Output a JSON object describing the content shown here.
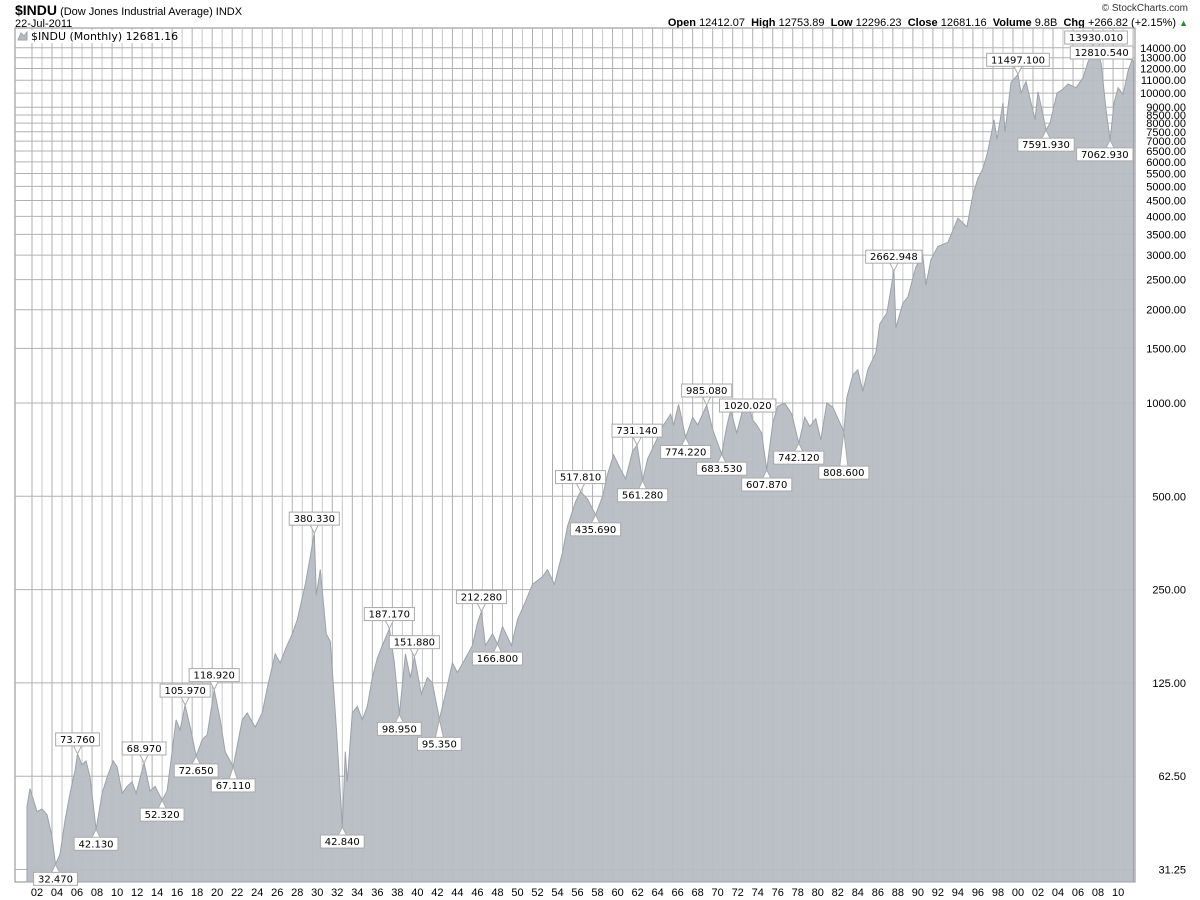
{
  "header": {
    "symbol": "$INDU",
    "name": "(Dow Jones Industrial Average) INDX",
    "date": "22-Jul-2011",
    "copyright": "© StockCharts.com",
    "open_label": "Open",
    "open": "12412.07",
    "high_label": "High",
    "high": "12753.89",
    "low_label": "Low",
    "low": "12296.23",
    "close_label": "Close",
    "close": "12681.16",
    "volume_label": "Volume",
    "volume": "9.8B",
    "chg_label": "Chg",
    "chg": "+266.82 (+2.15%)",
    "chg_icon": "triangle-up-icon"
  },
  "legend": {
    "text": "$INDU (Monthly) 12681.16"
  },
  "colors": {
    "fill": "#b7bcc3",
    "line": "#9ca2aa",
    "grid": "#c8c8c8",
    "grid_major": "#b0b0b0"
  },
  "chart_data": {
    "type": "area",
    "title": "$INDU (Dow Jones Industrial Average) INDX",
    "yscale": "log",
    "ylim": [
      28,
      14500
    ],
    "xlim": [
      1901,
      2011.6
    ],
    "grid": true,
    "legend": "top-left",
    "yticks": [
      "31.25",
      "62.50",
      "125.00",
      "250.00",
      "500.00",
      "1000.00",
      "1500.00",
      "2000.00",
      "2500.00",
      "3000.00",
      "3500.00",
      "4000.00",
      "4500.00",
      "5000.00",
      "5500.00",
      "6000.00",
      "6500.00",
      "7000.00",
      "7500.00",
      "8000.00",
      "8500.00",
      "9000.00",
      "10000.00",
      "11000.00",
      "12000.00",
      "13000.00",
      "14000.00"
    ],
    "ytick_values": [
      31.25,
      62.5,
      125,
      250,
      500,
      1000,
      1500,
      2000,
      2500,
      3000,
      3500,
      4000,
      4500,
      5000,
      5500,
      6000,
      6500,
      7000,
      7500,
      8000,
      8500,
      9000,
      10000,
      11000,
      12000,
      13000,
      14000
    ],
    "xticks": [
      "02",
      "04",
      "06",
      "08",
      "10",
      "12",
      "14",
      "16",
      "18",
      "20",
      "22",
      "24",
      "26",
      "28",
      "30",
      "32",
      "34",
      "36",
      "38",
      "40",
      "42",
      "44",
      "46",
      "48",
      "50",
      "52",
      "54",
      "56",
      "58",
      "60",
      "62",
      "64",
      "66",
      "68",
      "70",
      "72",
      "74",
      "76",
      "78",
      "80",
      "82",
      "84",
      "86",
      "88",
      "90",
      "92",
      "94",
      "96",
      "98",
      "00",
      "02",
      "04",
      "06",
      "08",
      "10"
    ],
    "x": [
      1901.0,
      1901.3,
      1901.6,
      1902.0,
      1902.5,
      1903.0,
      1903.5,
      1903.85,
      1904.3,
      1904.8,
      1905.3,
      1905.8,
      1906.05,
      1906.5,
      1906.9,
      1907.3,
      1907.9,
      1908.5,
      1909.0,
      1909.6,
      1910.0,
      1910.5,
      1911.0,
      1911.5,
      1911.9,
      1912.7,
      1913.3,
      1913.8,
      1914.5,
      1915.0,
      1915.5,
      1915.9,
      1916.3,
      1916.8,
      1917.3,
      1917.9,
      1918.5,
      1919.0,
      1919.7,
      1920.3,
      1920.8,
      1921.6,
      1922.5,
      1923.0,
      1923.8,
      1924.5,
      1925.0,
      1925.8,
      1926.3,
      1926.8,
      1927.5,
      1928.0,
      1928.8,
      1929.3,
      1929.7,
      1929.9,
      1930.3,
      1930.9,
      1931.3,
      1931.9,
      1932.5,
      1932.8,
      1933.0,
      1933.5,
      1934.0,
      1934.5,
      1935.0,
      1935.5,
      1936.0,
      1936.5,
      1937.2,
      1937.7,
      1938.2,
      1938.8,
      1939.3,
      1939.7,
      1940.4,
      1941.0,
      1941.5,
      1942.2,
      1942.8,
      1943.5,
      1944.0,
      1944.8,
      1945.5,
      1946.0,
      1946.4,
      1946.8,
      1947.5,
      1948.0,
      1948.5,
      1949.4,
      1950.0,
      1950.7,
      1951.5,
      1952.5,
      1953.0,
      1953.7,
      1954.5,
      1955.0,
      1955.8,
      1956.3,
      1957.0,
      1957.8,
      1958.5,
      1959.0,
      1959.6,
      1960.3,
      1960.8,
      1961.5,
      1961.95,
      1962.5,
      1963.0,
      1963.9,
      1964.5,
      1965.3,
      1965.6,
      1966.1,
      1966.8,
      1967.5,
      1968.0,
      1968.9,
      1969.5,
      1970.4,
      1970.9,
      1971.3,
      1971.9,
      1972.5,
      1973.0,
      1973.5,
      1973.9,
      1974.4,
      1974.9,
      1975.5,
      1976.0,
      1976.7,
      1977.4,
      1978.1,
      1978.7,
      1979.2,
      1979.8,
      1980.3,
      1980.9,
      1981.5,
      1982.6,
      1982.9,
      1983.5,
      1984.0,
      1984.5,
      1985.0,
      1985.8,
      1986.2,
      1986.9,
      1987.6,
      1987.8,
      1988.5,
      1989.0,
      1989.8,
      1990.5,
      1990.8,
      1991.3,
      1992.0,
      1993.0,
      1994.0,
      1994.9,
      1995.5,
      1996.0,
      1996.5,
      1997.0,
      1997.6,
      1997.9,
      1998.5,
      1998.7,
      1999.3,
      2000.0,
      2000.3,
      2000.8,
      2001.7,
      2002.0,
      2002.5,
      2002.8,
      2003.2,
      2003.9,
      2004.5,
      2005.0,
      2005.8,
      2006.5,
      2007.0,
      2007.8,
      2008.3,
      2008.8,
      2009.2,
      2009.6,
      2010.0,
      2010.5,
      2011.0,
      2011.4,
      2011.55
    ],
    "values": [
      50,
      57,
      53,
      48,
      49,
      47,
      40,
      32.47,
      35,
      45,
      55,
      65,
      73.76,
      68,
      70,
      62,
      42.13,
      55,
      62,
      70,
      67,
      55,
      58,
      60,
      55,
      68.97,
      56,
      58,
      52.32,
      56,
      75,
      95,
      88,
      105.97,
      90,
      72.65,
      82,
      85,
      118.92,
      95,
      75,
      67.11,
      95,
      100,
      90,
      100,
      120,
      155,
      145,
      160,
      180,
      200,
      260,
      320,
      380.33,
      240,
      290,
      180,
      170,
      90,
      42.84,
      75,
      60,
      100,
      105,
      95,
      105,
      130,
      150,
      165,
      187.17,
      145,
      98.95,
      155,
      130,
      151.88,
      115,
      130,
      125,
      95.35,
      115,
      145,
      135,
      150,
      165,
      195,
      212.28,
      165,
      180,
      166.8,
      190,
      165,
      200,
      225,
      260,
      275,
      290,
      260,
      330,
      400,
      480,
      517.81,
      490,
      435.69,
      500,
      590,
      680,
      610,
      570,
      700,
      731.14,
      561.28,
      660,
      760,
      840,
      920,
      850,
      990,
      774.22,
      900,
      850,
      985.08,
      820,
      683.53,
      840,
      950,
      800,
      950,
      1020.02,
      880,
      850,
      800,
      607.87,
      860,
      975,
      1000,
      920,
      742.12,
      900,
      840,
      890,
      760,
      1000,
      970,
      808.6,
      1040,
      1230,
      1280,
      1090,
      1280,
      1450,
      1800,
      1950,
      2662.948,
      1750,
      2100,
      2200,
      2750,
      2990,
      2400,
      2900,
      3200,
      3300,
      3950,
      3700,
      4700,
      5300,
      5700,
      6500,
      8200,
      7100,
      9300,
      7500,
      10800,
      11497.1,
      10000,
      10900,
      8200,
      10100,
      8500,
      7591.93,
      8000,
      10000,
      10300,
      10700,
      10400,
      11200,
      12600,
      13930.01,
      12500,
      8800,
      7062.93,
      9300,
      10400,
      9900,
      11800,
      12810.54,
      12681.16
    ],
    "annotations": [
      {
        "x": 1903.85,
        "y": 32.47,
        "label": "32.470",
        "type": "trough"
      },
      {
        "x": 1906.05,
        "y": 73.76,
        "label": "73.760",
        "type": "peak"
      },
      {
        "x": 1907.9,
        "y": 42.13,
        "label": "42.130",
        "type": "trough"
      },
      {
        "x": 1912.7,
        "y": 68.97,
        "label": "68.970",
        "type": "peak"
      },
      {
        "x": 1914.5,
        "y": 52.32,
        "label": "52.320",
        "type": "trough"
      },
      {
        "x": 1916.8,
        "y": 105.97,
        "label": "105.970",
        "type": "peak"
      },
      {
        "x": 1917.9,
        "y": 72.65,
        "label": "72.650",
        "type": "trough"
      },
      {
        "x": 1919.7,
        "y": 118.92,
        "label": "118.920",
        "type": "peak"
      },
      {
        "x": 1921.6,
        "y": 67.11,
        "label": "67.110",
        "type": "trough"
      },
      {
        "x": 1929.7,
        "y": 380.33,
        "label": "380.330",
        "type": "peak"
      },
      {
        "x": 1932.5,
        "y": 42.84,
        "label": "42.840",
        "type": "trough"
      },
      {
        "x": 1937.2,
        "y": 187.17,
        "label": "187.170",
        "type": "peak"
      },
      {
        "x": 1938.2,
        "y": 98.95,
        "label": "98.950",
        "type": "trough"
      },
      {
        "x": 1939.7,
        "y": 151.88,
        "label": "151.880",
        "type": "peak"
      },
      {
        "x": 1942.2,
        "y": 95.35,
        "label": "95.350",
        "type": "trough"
      },
      {
        "x": 1946.4,
        "y": 212.28,
        "label": "212.280",
        "type": "peak"
      },
      {
        "x": 1948.0,
        "y": 166.8,
        "label": "166.800",
        "type": "trough"
      },
      {
        "x": 1956.3,
        "y": 517.81,
        "label": "517.810",
        "type": "peak"
      },
      {
        "x": 1957.8,
        "y": 435.69,
        "label": "435.690",
        "type": "trough"
      },
      {
        "x": 1961.95,
        "y": 731.14,
        "label": "731.140",
        "type": "peak"
      },
      {
        "x": 1962.5,
        "y": 561.28,
        "label": "561.280",
        "type": "trough"
      },
      {
        "x": 1966.8,
        "y": 774.22,
        "label": "774.220",
        "type": "trough"
      },
      {
        "x": 1968.9,
        "y": 985.08,
        "label": "985.080",
        "type": "peak"
      },
      {
        "x": 1970.4,
        "y": 683.53,
        "label": "683.530",
        "type": "trough"
      },
      {
        "x": 1973.0,
        "y": 1020.02,
        "label": "1020.020",
        "type": "peak"
      },
      {
        "x": 1974.9,
        "y": 607.87,
        "label": "607.870",
        "type": "trough"
      },
      {
        "x": 1978.1,
        "y": 742.12,
        "label": "742.120",
        "type": "trough"
      },
      {
        "x": 1982.6,
        "y": 808.6,
        "label": "808.600",
        "type": "trough"
      },
      {
        "x": 1987.6,
        "y": 2662.948,
        "label": "2662.948",
        "type": "peak"
      },
      {
        "x": 2000.0,
        "y": 11497.1,
        "label": "11497.100",
        "type": "peak"
      },
      {
        "x": 2002.8,
        "y": 7591.93,
        "label": "7591.930",
        "type": "trough"
      },
      {
        "x": 2007.8,
        "y": 13930.01,
        "label": "13930.010",
        "type": "peak"
      },
      {
        "x": 2009.2,
        "y": 7062.93,
        "label": "7062.930",
        "type": "trough"
      },
      {
        "x": 2011.4,
        "y": 12810.54,
        "label": "12810.540",
        "type": "peak"
      }
    ]
  }
}
